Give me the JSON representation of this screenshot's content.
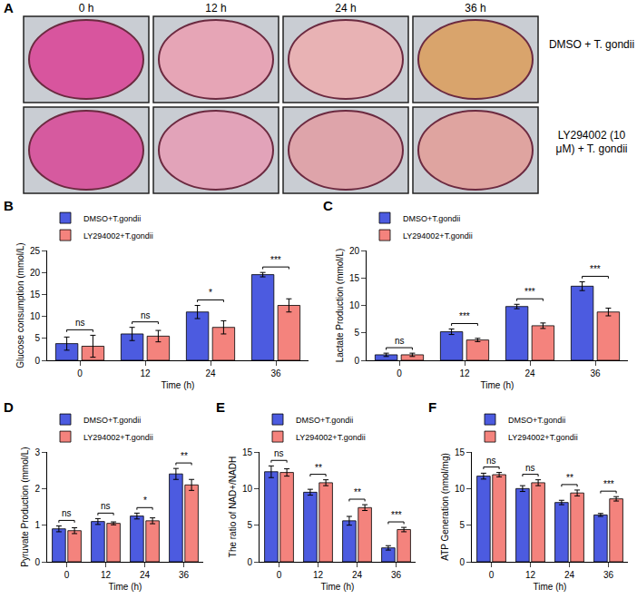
{
  "panel_a": {
    "panel": "A",
    "columns": [
      "0 h",
      "12 h",
      "24 h",
      "36 h"
    ],
    "rows": [
      {
        "label": "DMSO + T. gondii",
        "colors": [
          "#d8559e",
          "#e6a5b6",
          "#e8b2b4",
          "#d9a46c"
        ]
      },
      {
        "label": "LY294002 (10 μM) + T. gondii",
        "colors": [
          "#d65a9f",
          "#e2a3b9",
          "#dea4aa",
          "#dfa4a0"
        ]
      }
    ]
  },
  "chart_data": [
    {
      "type": "bar",
      "panel": "B",
      "x_label": "Time (h)",
      "y_label": "Glucose consumption (mmol/L)",
      "categories": [
        "0",
        "12",
        "24",
        "36"
      ],
      "series": [
        {
          "name": "DMSO+T.gondii",
          "color": "#4c5be0",
          "values": [
            3.8,
            6,
            11,
            19.5
          ],
          "errors": [
            1.5,
            1.5,
            1.5,
            0.5
          ]
        },
        {
          "name": "LY294002+T.gondii",
          "color": "#f4837d",
          "values": [
            3.2,
            5.5,
            7.5,
            12.5
          ],
          "errors": [
            2.5,
            1.3,
            1.5,
            1.5
          ]
        }
      ],
      "significance": [
        "ns",
        "ns",
        "*",
        "***"
      ],
      "ylim": [
        0,
        25
      ],
      "yticks": [
        0,
        5,
        10,
        15,
        20,
        25
      ],
      "grid": false,
      "legend": "top"
    },
    {
      "type": "bar",
      "panel": "C",
      "x_label": "Time (h)",
      "y_label": "Lactate Production (mmol/L)",
      "categories": [
        "0",
        "12",
        "24",
        "36"
      ],
      "series": [
        {
          "name": "DMSO+T.gondii",
          "color": "#4c5be0",
          "values": [
            1,
            5.2,
            9.8,
            13.5
          ],
          "errors": [
            0.3,
            0.5,
            0.4,
            0.8
          ]
        },
        {
          "name": "LY294002+T.gondii",
          "color": "#f4837d",
          "values": [
            1,
            3.7,
            6.3,
            8.8
          ],
          "errors": [
            0.3,
            0.3,
            0.5,
            0.7
          ]
        }
      ],
      "significance": [
        "ns",
        "***",
        "***",
        "***"
      ],
      "ylim": [
        0,
        20
      ],
      "yticks": [
        0,
        5,
        10,
        15,
        20
      ],
      "grid": false,
      "legend": "top"
    },
    {
      "type": "bar",
      "panel": "D",
      "x_label": "Time (h)",
      "y_label": "Pyruvate Production (mmol/L)",
      "categories": [
        "0",
        "12",
        "24",
        "36"
      ],
      "series": [
        {
          "name": "DMSO+T.gondii",
          "color": "#4c5be0",
          "values": [
            0.9,
            1.1,
            1.25,
            2.4
          ],
          "errors": [
            0.08,
            0.08,
            0.08,
            0.15
          ]
        },
        {
          "name": "LY294002+T.gondii",
          "color": "#f4837d",
          "values": [
            0.85,
            1.05,
            1.12,
            2.1
          ],
          "errors": [
            0.08,
            0.04,
            0.08,
            0.15
          ]
        }
      ],
      "significance": [
        "ns",
        "ns",
        "*",
        "**"
      ],
      "ylim": [
        0,
        3
      ],
      "yticks": [
        0,
        1,
        2,
        3
      ],
      "grid": false,
      "legend": "top"
    },
    {
      "type": "bar",
      "panel": "E",
      "x_label": "Time (h)",
      "y_label": "The ratio of NAD+/NADH",
      "categories": [
        "0",
        "12",
        "24",
        "36"
      ],
      "series": [
        {
          "name": "DMSO+T.gondii",
          "color": "#4c5be0",
          "values": [
            12.3,
            9.5,
            5.6,
            1.9
          ],
          "errors": [
            0.8,
            0.4,
            0.6,
            0.3
          ]
        },
        {
          "name": "LY294002+T.gondii",
          "color": "#f4837d",
          "values": [
            12.2,
            10.8,
            7.4,
            4.4
          ],
          "errors": [
            0.5,
            0.4,
            0.4,
            0.3
          ]
        }
      ],
      "significance": [
        "ns",
        "**",
        "**",
        "***"
      ],
      "ylim": [
        0,
        15
      ],
      "yticks": [
        0,
        5,
        10,
        15
      ],
      "grid": false,
      "legend": "top"
    },
    {
      "type": "bar",
      "panel": "F",
      "x_label": "Time (h)",
      "y_label": "ATP Generation (nmol/mg)",
      "categories": [
        "0",
        "12",
        "24",
        "36"
      ],
      "series": [
        {
          "name": "DMSO+T.gondii",
          "color": "#4c5be0",
          "values": [
            11.7,
            10,
            8.1,
            6.4
          ],
          "errors": [
            0.4,
            0.4,
            0.3,
            0.2
          ]
        },
        {
          "name": "LY294002+T.gondii",
          "color": "#f4837d",
          "values": [
            11.9,
            10.8,
            9.4,
            8.6
          ],
          "errors": [
            0.3,
            0.4,
            0.4,
            0.3
          ]
        }
      ],
      "significance": [
        "ns",
        "ns",
        "**",
        "***"
      ],
      "ylim": [
        0,
        15
      ],
      "yticks": [
        0,
        5,
        10,
        15
      ],
      "grid": false,
      "legend": "top"
    }
  ]
}
